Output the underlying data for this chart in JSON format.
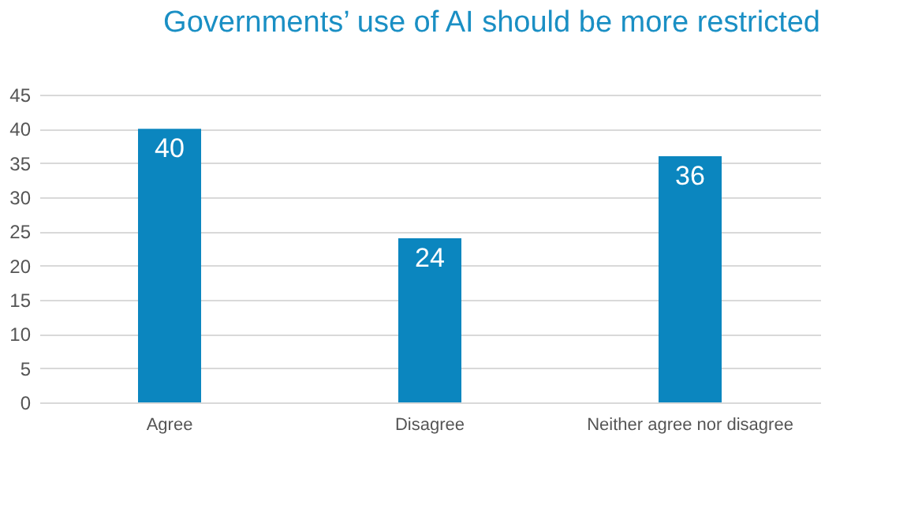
{
  "chart_data": {
    "type": "bar",
    "title": "Governments’ use of AI should be more restricted",
    "categories": [
      "Agree",
      "Disagree",
      "Neither agree nor disagree"
    ],
    "values": [
      40,
      24,
      36
    ],
    "color": "#0b86bf",
    "ylim": [
      0,
      45
    ],
    "yticks": [
      0,
      5,
      10,
      15,
      20,
      25,
      30,
      35,
      40,
      45
    ],
    "grid": "y",
    "data_labels": true
  }
}
